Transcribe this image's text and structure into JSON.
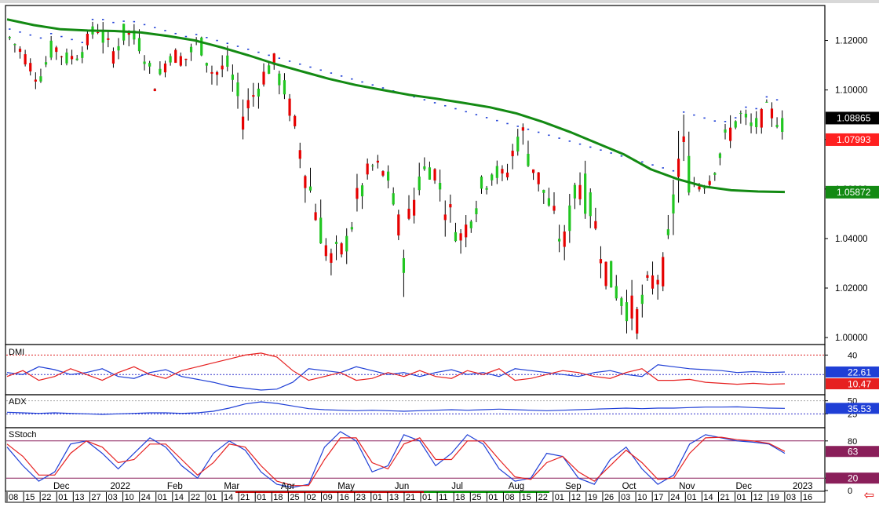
{
  "chart_data": [
    {
      "type": "candlestick",
      "panel": "price",
      "y_ticks": [
        "1.12000",
        "1.10000",
        "1.08000",
        "1.06000",
        "1.04000",
        "1.02000",
        "1.00000"
      ],
      "y_tick_values": [
        1.12,
        1.1,
        1.08,
        1.06,
        1.04,
        1.02,
        1.0
      ],
      "ylim": [
        0.9975,
        1.1338
      ],
      "last_values": [
        {
          "label": "1.08865",
          "value": 1.08865,
          "color": "#000000"
        },
        {
          "label": "1.07993",
          "value": 1.07993,
          "color": "#ff2020"
        },
        {
          "label": "1.05872",
          "value": 1.05872,
          "color": "#138a13"
        }
      ],
      "ohlc_anchors": [
        [
          1.128,
          1.13,
          1.118,
          1.121
        ],
        [
          1.12,
          1.125,
          1.112,
          1.114
        ],
        [
          1.11,
          1.112,
          1.101,
          1.104
        ],
        [
          1.106,
          1.12,
          1.104,
          1.118
        ],
        [
          1.115,
          1.12,
          1.108,
          1.112
        ],
        [
          1.112,
          1.118,
          1.106,
          1.116
        ],
        [
          1.115,
          1.128,
          1.112,
          1.126
        ],
        [
          1.126,
          1.129,
          1.112,
          1.114
        ],
        [
          1.112,
          1.126,
          1.108,
          1.124
        ],
        [
          1.124,
          1.128,
          1.114,
          1.118
        ],
        [
          1.108,
          1.112,
          1.1,
          1.102
        ],
        [
          1.104,
          1.118,
          1.102,
          1.115
        ],
        [
          1.116,
          1.12,
          1.108,
          1.112
        ],
        [
          1.112,
          1.124,
          1.108,
          1.12
        ],
        [
          1.12,
          1.122,
          1.104,
          1.106
        ],
        [
          1.104,
          1.114,
          1.098,
          1.11
        ],
        [
          1.108,
          1.112,
          1.086,
          1.09
        ],
        [
          1.092,
          1.106,
          1.088,
          1.101
        ],
        [
          1.1,
          1.115,
          1.096,
          1.112
        ],
        [
          1.11,
          1.112,
          1.095,
          1.098
        ],
        [
          1.094,
          1.098,
          1.07,
          1.074
        ],
        [
          1.074,
          1.08,
          1.048,
          1.052
        ],
        [
          1.05,
          1.056,
          1.026,
          1.03
        ],
        [
          1.03,
          1.04,
          1.022,
          1.036
        ],
        [
          1.036,
          1.062,
          1.034,
          1.058
        ],
        [
          1.06,
          1.074,
          1.056,
          1.07
        ],
        [
          1.068,
          1.072,
          1.06,
          1.064
        ],
        [
          1.062,
          1.066,
          1.03,
          1.034
        ],
        [
          1.034,
          1.068,
          1.03,
          1.064
        ],
        [
          1.064,
          1.074,
          1.06,
          1.07
        ],
        [
          1.07,
          1.074,
          1.048,
          1.052
        ],
        [
          1.05,
          1.054,
          1.034,
          1.04
        ],
        [
          1.04,
          1.058,
          1.036,
          1.055
        ],
        [
          1.056,
          1.072,
          1.052,
          1.068
        ],
        [
          1.07,
          1.074,
          1.06,
          1.064
        ],
        [
          1.064,
          1.09,
          1.06,
          1.084
        ],
        [
          1.082,
          1.086,
          1.064,
          1.068
        ],
        [
          1.066,
          1.07,
          1.05,
          1.054
        ],
        [
          1.052,
          1.056,
          1.032,
          1.036
        ],
        [
          1.036,
          1.07,
          1.032,
          1.066
        ],
        [
          1.064,
          1.068,
          1.046,
          1.05
        ],
        [
          1.048,
          1.05,
          1.022,
          1.026
        ],
        [
          1.026,
          1.036,
          1.01,
          1.016
        ],
        [
          1.016,
          1.03,
          1.004,
          1.008
        ],
        [
          1.008,
          1.026,
          1.0,
          1.022
        ],
        [
          1.022,
          1.034,
          1.012,
          1.028
        ],
        [
          1.028,
          1.08,
          1.026,
          1.076
        ],
        [
          1.074,
          1.082,
          1.058,
          1.062
        ],
        [
          1.062,
          1.068,
          1.056,
          1.064
        ],
        [
          1.066,
          1.082,
          1.062,
          1.078
        ],
        [
          1.078,
          1.094,
          1.074,
          1.09
        ],
        [
          1.09,
          1.094,
          1.08,
          1.084
        ],
        [
          1.084,
          1.094,
          1.08,
          1.092
        ],
        [
          1.09,
          1.096,
          1.082,
          1.086
        ]
      ],
      "moving_average": [
        1.1285,
        1.1262,
        1.1245,
        1.124,
        1.1238,
        1.1232,
        1.1218,
        1.12,
        1.1172,
        1.114,
        1.1105,
        1.1075,
        1.1045,
        1.102,
        1.1,
        1.098,
        1.0965,
        1.0948,
        1.093,
        1.0905,
        1.087,
        1.083,
        1.0785,
        1.074,
        1.068,
        1.064,
        1.061,
        1.0595,
        1.059,
        1.0588
      ],
      "psar_bands": {
        "blue_above": "",
        "red_below": ""
      },
      "xlim": [
        0,
        1
      ]
    },
    {
      "type": "line",
      "panel": "DMI",
      "title": "DMI",
      "y_ticks": [
        "40"
      ],
      "ylim": [
        0,
        50
      ],
      "series": [
        {
          "color": "#1f3fd6",
          "values": [
            22,
            20,
            28,
            25,
            20,
            22,
            26,
            18,
            16,
            22,
            25,
            18,
            15,
            12,
            8,
            6,
            4,
            5,
            12,
            26,
            24,
            22,
            28,
            24,
            20,
            22,
            18,
            22,
            25,
            20,
            22,
            18,
            26,
            24,
            22,
            20,
            18,
            22,
            24,
            20,
            18,
            30,
            28,
            26,
            25,
            24,
            22,
            23,
            22,
            22.61
          ]
        },
        {
          "color": "#e62020",
          "values": [
            18,
            24,
            14,
            18,
            26,
            20,
            14,
            22,
            28,
            20,
            16,
            24,
            28,
            32,
            36,
            40,
            42,
            38,
            24,
            14,
            18,
            22,
            14,
            16,
            22,
            18,
            24,
            18,
            16,
            24,
            20,
            26,
            14,
            16,
            20,
            24,
            22,
            18,
            16,
            22,
            26,
            14,
            14,
            15,
            12,
            11,
            10,
            11,
            10,
            10.47
          ]
        }
      ],
      "last_values": [
        {
          "label": "22.61",
          "value": 22.61,
          "color": "#1f3fd6"
        },
        {
          "label": "10.47",
          "value": 10.47,
          "color": "#e62020"
        }
      ]
    },
    {
      "type": "line",
      "panel": "ADX",
      "title": "ADX",
      "y_ticks": [
        "50",
        "25"
      ],
      "ylim": [
        0,
        60
      ],
      "series": [
        {
          "color": "#1f3fd6",
          "values": [
            28,
            27,
            26,
            27,
            26,
            25,
            24,
            25,
            26,
            27,
            27,
            26,
            27,
            30,
            36,
            44,
            48,
            45,
            40,
            35,
            33,
            32,
            31,
            32,
            31,
            30,
            31,
            32,
            33,
            32,
            33,
            34,
            33,
            32,
            31,
            32,
            33,
            34,
            35,
            36,
            35,
            36,
            36,
            37,
            38,
            38,
            38.4,
            37,
            36,
            35.53
          ]
        }
      ],
      "last_values": [
        {
          "label": "35.53",
          "value": 35.53,
          "color": "#1f3fd6"
        }
      ]
    },
    {
      "type": "line",
      "panel": "SStoch",
      "title": "SStoch",
      "y_ticks": [
        "80",
        "20",
        "0"
      ],
      "ylim": [
        0,
        100
      ],
      "series": [
        {
          "color": "#1f3fd6",
          "values": [
            70,
            40,
            15,
            30,
            75,
            80,
            60,
            35,
            60,
            85,
            70,
            40,
            20,
            60,
            80,
            65,
            30,
            10,
            5,
            10,
            70,
            95,
            80,
            30,
            40,
            90,
            80,
            40,
            60,
            90,
            75,
            35,
            15,
            20,
            60,
            55,
            20,
            10,
            50,
            70,
            35,
            10,
            25,
            75,
            90,
            85,
            80,
            78,
            75,
            60
          ]
        },
        {
          "color": "#e62020",
          "values": [
            75,
            55,
            25,
            25,
            60,
            80,
            70,
            45,
            50,
            75,
            75,
            50,
            25,
            45,
            75,
            70,
            40,
            15,
            8,
            8,
            50,
            85,
            85,
            45,
            35,
            75,
            85,
            50,
            50,
            80,
            80,
            50,
            22,
            18,
            45,
            55,
            30,
            15,
            40,
            65,
            45,
            18,
            20,
            60,
            85,
            86,
            82,
            80,
            76,
            63
          ]
        }
      ],
      "last_values": [
        {
          "label": "63",
          "value": 63,
          "color": "#8a1f5a"
        },
        {
          "label": "20",
          "value": 20,
          "color": "#8a1f5a"
        }
      ]
    }
  ],
  "x_axis": {
    "months": [
      "Dec",
      "2022",
      "Feb",
      "Mar",
      "Apr",
      "May",
      "Jun",
      "Jul",
      "Aug",
      "Sep",
      "Oct",
      "Nov",
      "Dec",
      "2023"
    ],
    "days": [
      "08",
      "15",
      "22",
      "01",
      "13",
      "27",
      "03",
      "10",
      "24",
      "01",
      "14",
      "22",
      "01",
      "14",
      "21",
      "01",
      "18",
      "25",
      "02",
      "09",
      "16",
      "23",
      "01",
      "13",
      "21",
      "01",
      "11",
      "18",
      "25",
      "01",
      "08",
      "15",
      "22",
      "01",
      "12",
      "19",
      "26",
      "03",
      "10",
      "17",
      "24",
      "01",
      "14",
      "21",
      "01",
      "12",
      "19",
      "03",
      "16"
    ]
  },
  "colors": {
    "up_candle": "#21c621",
    "down_candle": "#e60000",
    "moving_average": "#138a13",
    "sar_above": "#1f3fd6",
    "sar_below": "#e62020",
    "price_tag_last": "#000000",
    "price_tag_red": "#ff2020",
    "price_tag_green": "#138a13",
    "stoch_tag": "#8a1f5a",
    "blue_tag": "#1f3fd6",
    "red_tag": "#e62020"
  },
  "icons": {
    "scroll_arrow": "left-arrow-icon"
  },
  "arrow_glyph": "⇦"
}
